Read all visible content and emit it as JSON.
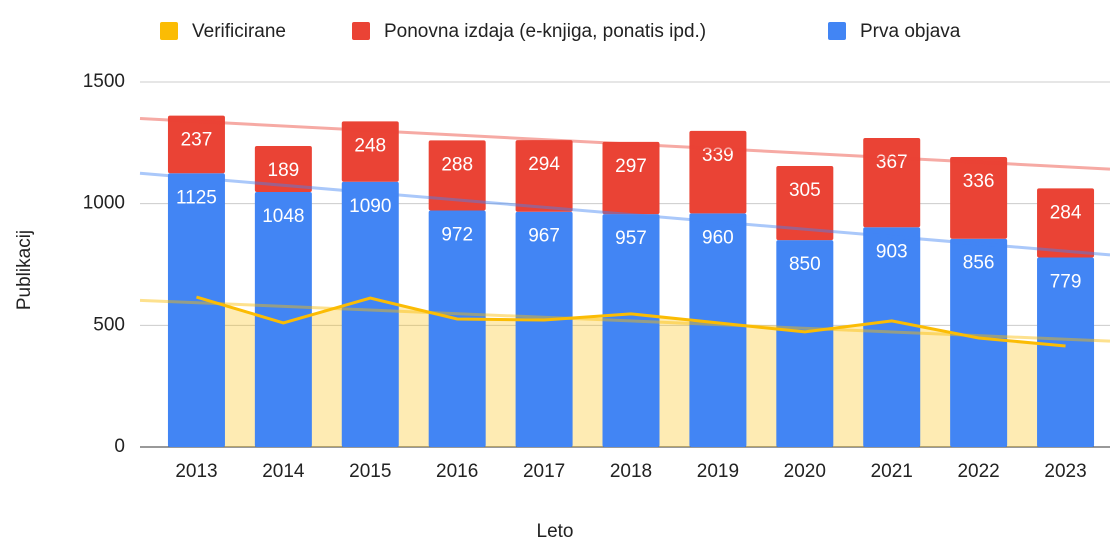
{
  "chart_data": {
    "type": "bar",
    "categories": [
      "2013",
      "2014",
      "2015",
      "2016",
      "2017",
      "2018",
      "2019",
      "2020",
      "2021",
      "2022",
      "2023"
    ],
    "series": [
      {
        "name": "Verificirane",
        "color": "#fbbc04",
        "type": "line",
        "values": [
          616,
          510,
          612,
          526,
          522,
          547,
          510,
          473,
          518,
          448,
          415
        ]
      },
      {
        "name": "Ponovna izdaja (e-knjiga, ponatis ipd.)",
        "color": "#ea4335",
        "type": "bar",
        "values": [
          237,
          189,
          248,
          288,
          294,
          297,
          339,
          305,
          367,
          336,
          284
        ]
      },
      {
        "name": "Prva objava",
        "color": "#4285f4",
        "type": "bar",
        "values": [
          1125,
          1048,
          1090,
          972,
          967,
          957,
          960,
          850,
          903,
          856,
          779
        ]
      }
    ],
    "x_label": "Leto",
    "y_label": "Publikacij",
    "ylim": [
      0,
      1500
    ],
    "yticks": [
      0,
      500,
      1000,
      1500
    ],
    "trendlines": true,
    "legend": "top"
  }
}
